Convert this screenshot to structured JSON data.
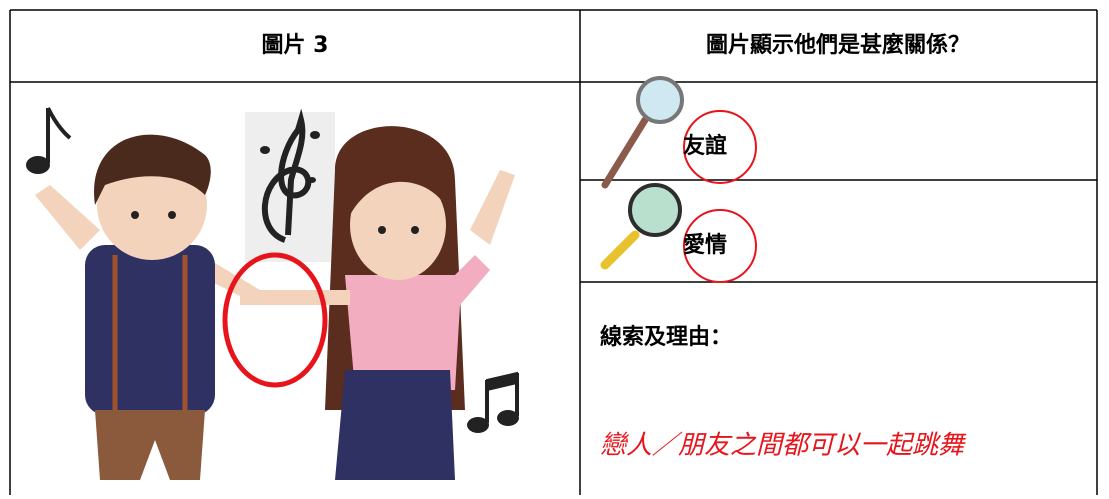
{
  "table": {
    "header": [
      "圖片 3",
      "圖片顯示他們是甚麼關係？"
    ],
    "options": [
      "友誼",
      "愛情"
    ],
    "clue_label": "線索及理由：",
    "answer": "戀人／朋友之間都可以一起跳舞"
  }
}
